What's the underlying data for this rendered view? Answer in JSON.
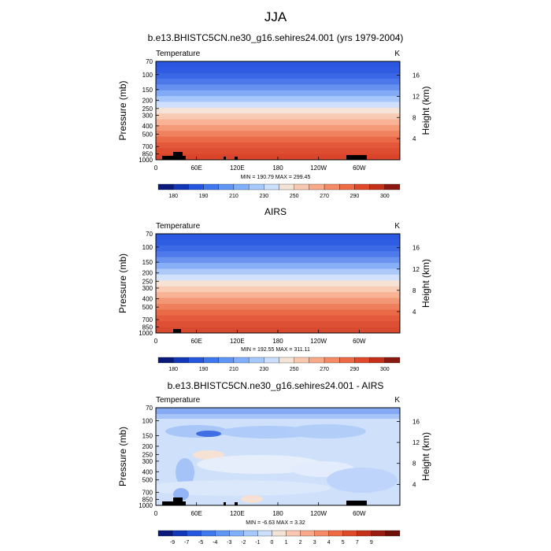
{
  "figure": {
    "title": "JJA"
  },
  "panels": [
    {
      "title": "b.e13.BHISTC5CN.ne30_g16.sehires24.001 (yrs 1979-2004)",
      "var_label": "Temperature",
      "units": "K",
      "ylabel": "Pressure (mb)",
      "ylabel_right": "Height (km)",
      "minmax": "MIN = 190.79  MAX = 299.45",
      "colorbar_labels": [
        "180",
        "190",
        "210",
        "230",
        "250",
        "270",
        "290",
        "300"
      ]
    },
    {
      "title": "AIRS",
      "var_label": "Temperature",
      "units": "K",
      "ylabel": "Pressure (mb)",
      "ylabel_right": "Height (km)",
      "minmax": "MIN = 192.55  MAX = 311.11",
      "colorbar_labels": [
        "180",
        "190",
        "210",
        "230",
        "250",
        "270",
        "290",
        "300"
      ]
    },
    {
      "title": "b.e13.BHISTC5CN.ne30_g16.sehires24.001 - AIRS",
      "var_label": "Temperature",
      "units": "K",
      "ylabel": "Pressure (mb)",
      "ylabel_right": "Height (km)",
      "minmax": "MIN = -6.63  MAX =  3.32",
      "colorbar_labels": [
        "-9",
        "-7",
        "-5",
        "-4",
        "-3",
        "-2",
        "-1",
        "0",
        "1",
        "2",
        "3",
        "4",
        "5",
        "7",
        "9"
      ]
    }
  ],
  "chart_data": [
    {
      "type": "heatmap",
      "title": "b.e13.BHISTC5CN.ne30_g16.sehires24.001 (yrs 1979-2004)",
      "ylabel": "Pressure (mb)",
      "y2label": "Height (km)",
      "x_ticks": [
        "0",
        "60E",
        "120E",
        "180",
        "120W",
        "60W"
      ],
      "y_ticks": [
        70,
        100,
        150,
        200,
        250,
        300,
        400,
        500,
        700,
        850,
        1000
      ],
      "y_scale": "log",
      "ylim": [
        1000,
        70
      ],
      "y2_ticks": [
        4,
        8,
        12,
        16
      ],
      "color_levels": [
        180,
        190,
        210,
        230,
        250,
        270,
        290,
        300
      ],
      "min": 190.79,
      "max": 299.45
    },
    {
      "type": "heatmap",
      "title": "AIRS",
      "ylabel": "Pressure (mb)",
      "y2label": "Height (km)",
      "x_ticks": [
        "0",
        "60E",
        "120E",
        "180",
        "120W",
        "60W"
      ],
      "y_ticks": [
        70,
        100,
        150,
        200,
        250,
        300,
        400,
        500,
        700,
        850,
        1000
      ],
      "y_scale": "log",
      "ylim": [
        1000,
        70
      ],
      "y2_ticks": [
        4,
        8,
        12,
        16
      ],
      "color_levels": [
        180,
        190,
        210,
        230,
        250,
        270,
        290,
        300
      ],
      "min": 192.55,
      "max": 311.11
    },
    {
      "type": "heatmap",
      "title": "b.e13.BHISTC5CN.ne30_g16.sehires24.001 - AIRS",
      "ylabel": "Pressure (mb)",
      "y2label": "Height (km)",
      "x_ticks": [
        "0",
        "60E",
        "120E",
        "180",
        "120W",
        "60W"
      ],
      "y_ticks": [
        70,
        100,
        150,
        200,
        250,
        300,
        400,
        500,
        700,
        850,
        1000
      ],
      "y_scale": "log",
      "ylim": [
        1000,
        70
      ],
      "y2_ticks": [
        4,
        8,
        12,
        16
      ],
      "color_levels": [
        -9,
        -7,
        -5,
        -4,
        -3,
        -2,
        -1,
        0,
        1,
        2,
        3,
        4,
        5,
        7,
        9
      ],
      "min": -6.63,
      "max": 3.32
    }
  ],
  "colors": {
    "colorbar_full": [
      "#0a1a7a",
      "#1237b8",
      "#2457dd",
      "#3f77ee",
      "#5f95f5",
      "#80b0fb",
      "#a5c9fd",
      "#cbdffd",
      "#f3e3d6",
      "#f9c8b0",
      "#f7a98a",
      "#f48a66",
      "#ee6a45",
      "#e0482a",
      "#c5301a",
      "#9a1c10",
      "#6e0f08"
    ],
    "model_temp": [
      "#2a56e0",
      "#2e5be2",
      "#3a67e6",
      "#4c78ea",
      "#6690ef",
      "#83abf5",
      "#a7c7fa",
      "#cfdffc",
      "#f6e3d8",
      "#f9cbb4",
      "#f8b295",
      "#f49a78",
      "#f0825f",
      "#ea6a48",
      "#e3573a",
      "#df4d31",
      "#d9442b"
    ],
    "obs_temp": [
      "#2b58e1",
      "#305ee3",
      "#3c69e6",
      "#4e7aeb",
      "#6a93f0",
      "#88aff6",
      "#acc9fa",
      "#d3e2fc",
      "#f6e3d6",
      "#f9cdb5",
      "#f7b394",
      "#f39877",
      "#ef805d",
      "#e96a47",
      "#e35a3c",
      "#de5035",
      "#d84a30"
    ],
    "diff_bg": "#cfe0fa",
    "terrain": "#000000"
  }
}
